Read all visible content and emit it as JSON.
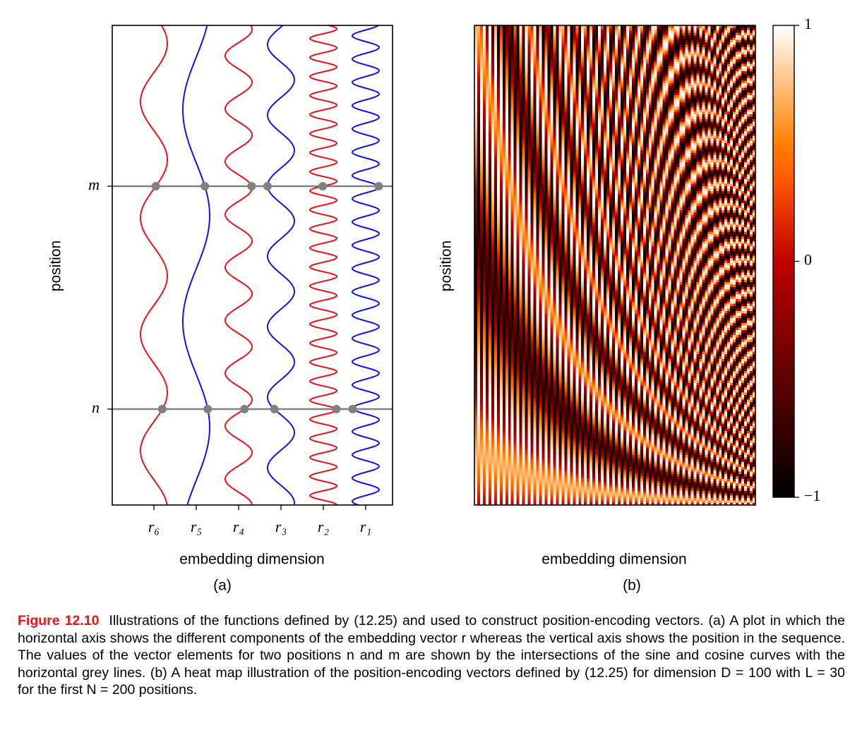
{
  "figure": {
    "panels": [
      {
        "label": "(a)",
        "xlabel": "embedding dimension",
        "ylabel": "position",
        "yticks": [
          "m",
          "n"
        ],
        "xticks": [
          "r₆",
          "r₅",
          "r₄",
          "r₃",
          "r₂",
          "r₁"
        ]
      },
      {
        "label": "(b)",
        "xlabel": "embedding dimension",
        "ylabel": "position",
        "colorbar": {
          "lim": [
            -1,
            1
          ],
          "ticks": [
            1,
            0,
            {
              "value": -1,
              "label": "−1"
            }
          ]
        }
      }
    ],
    "caption": {
      "label": "Figure 12.10",
      "text": "Illustrations of the functions defined by (12.25) and used to construct position-encoding vectors. (a) A plot in which the horizontal axis shows the different components of the embedding vector r whereas the vertical axis shows the position in the sequence. The values of the vector elements for two positions n and m are shown by the intersections of the sine and cosine curves with the horizontal grey lines. (b) A heat map illustration of the position-encoding vectors defined by (12.25) for dimension D = 100 with L = 30 for the first N = 200 positions."
    }
  }
}
